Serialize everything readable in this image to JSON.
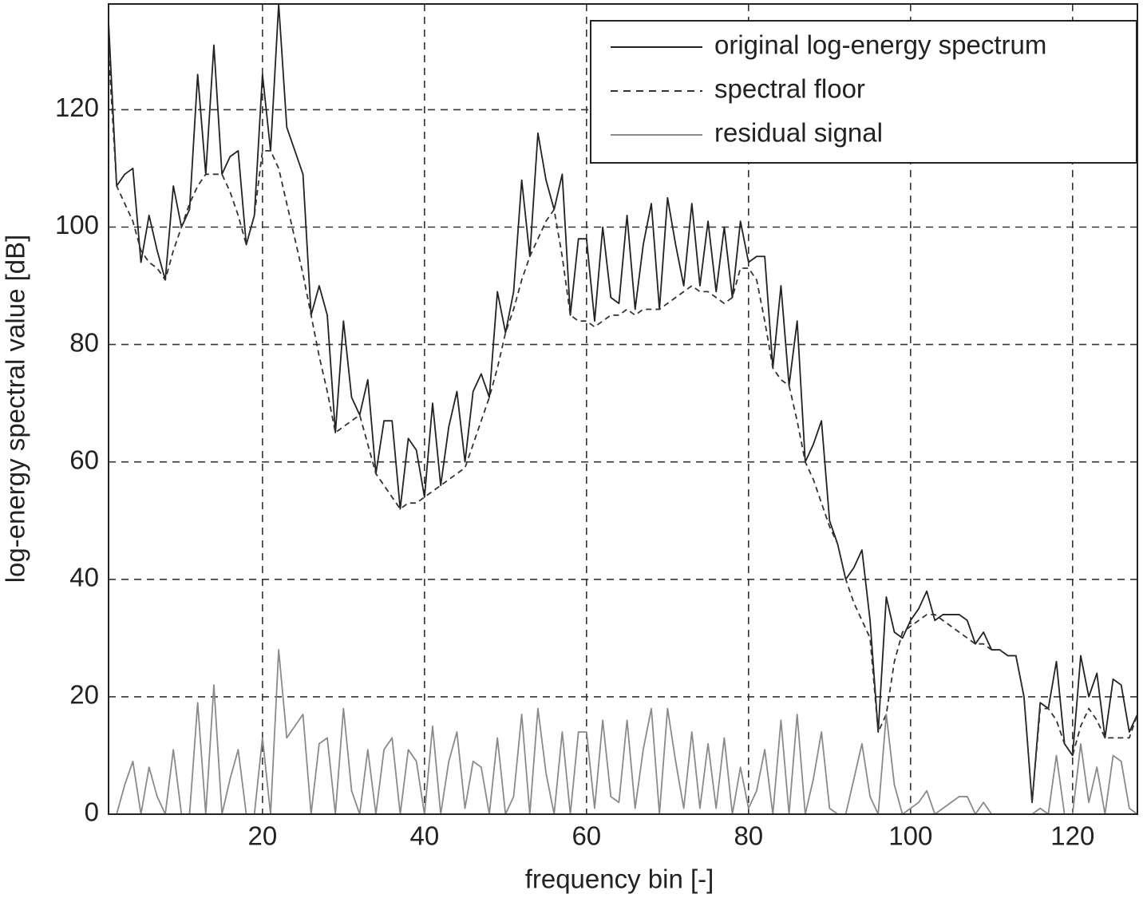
{
  "chart_data": {
    "type": "line",
    "xlabel": "frequency bin [-]",
    "ylabel": "log-energy spectral value [dB]",
    "x": [
      1,
      2,
      3,
      4,
      5,
      6,
      7,
      8,
      9,
      10,
      11,
      12,
      13,
      14,
      15,
      16,
      17,
      18,
      19,
      20,
      21,
      22,
      23,
      24,
      25,
      26,
      27,
      28,
      29,
      30,
      31,
      32,
      33,
      34,
      35,
      36,
      37,
      38,
      39,
      40,
      41,
      42,
      43,
      44,
      45,
      46,
      47,
      48,
      49,
      50,
      51,
      52,
      53,
      54,
      55,
      56,
      57,
      58,
      59,
      60,
      61,
      62,
      63,
      64,
      65,
      66,
      67,
      68,
      69,
      70,
      71,
      72,
      73,
      74,
      75,
      76,
      77,
      78,
      79,
      80,
      81,
      82,
      83,
      84,
      85,
      86,
      87,
      88,
      89,
      90,
      91,
      92,
      93,
      94,
      95,
      96,
      97,
      98,
      99,
      100,
      101,
      102,
      103,
      104,
      105,
      106,
      107,
      108,
      109,
      110,
      111,
      112,
      113,
      114,
      115,
      116,
      117,
      118,
      119,
      120,
      121,
      122,
      123,
      124,
      125,
      126,
      127,
      128
    ],
    "xlim": [
      1,
      128
    ],
    "xticks": [
      20,
      40,
      60,
      80,
      100,
      120
    ],
    "ylim": [
      0,
      138
    ],
    "yticks": [
      0,
      20,
      40,
      60,
      80,
      100,
      120
    ],
    "grid": true,
    "legend": "upper right",
    "series": [
      {
        "name": "original log-energy spectrum",
        "color": "#222222",
        "line_style": "solid",
        "values": [
          135,
          107,
          109,
          110,
          94,
          102,
          96,
          91,
          107,
          100,
          103,
          126,
          109,
          131,
          109,
          112,
          113,
          97,
          102,
          126,
          113,
          138,
          117,
          113,
          109,
          85,
          90,
          85,
          65,
          84,
          71,
          68,
          74,
          58,
          67,
          67,
          52,
          64,
          62,
          54,
          70,
          56,
          66,
          72,
          60,
          72,
          75,
          71,
          89,
          82,
          89,
          108,
          95,
          116,
          108,
          103,
          109,
          85,
          98,
          98,
          84,
          100,
          88,
          87,
          102,
          86,
          97,
          104,
          86,
          105,
          97,
          90,
          104,
          90,
          101,
          89,
          100,
          88,
          101,
          94,
          95,
          95,
          76,
          90,
          73,
          84,
          60,
          63,
          67,
          50,
          46,
          40,
          42,
          45,
          33,
          14,
          37,
          31,
          30,
          33,
          35,
          38,
          33,
          34,
          34,
          34,
          33,
          29,
          31,
          28,
          28,
          27,
          27,
          20,
          2,
          19,
          18,
          26,
          12,
          10,
          27,
          20,
          24,
          13,
          23,
          22,
          14,
          17
        ]
      },
      {
        "name": "spectral floor",
        "color": "#333333",
        "line_style": "dashed",
        "values": [
          130,
          107,
          104,
          101,
          96,
          94,
          93,
          91,
          96,
          100,
          104,
          107,
          109,
          109,
          109,
          106,
          102,
          97,
          102,
          113,
          113,
          110,
          104,
          98,
          92,
          85,
          78,
          72,
          65,
          66,
          67,
          68,
          63,
          58,
          56,
          54,
          52,
          53,
          53,
          54,
          55,
          56,
          57,
          58,
          59,
          63,
          67,
          71,
          76,
          82,
          86,
          91,
          95,
          98,
          101,
          103,
          95,
          85,
          84,
          84,
          83,
          84,
          85,
          85,
          86,
          85,
          86,
          86,
          86,
          87,
          88,
          89,
          90,
          89,
          89,
          88,
          87,
          88,
          93,
          93,
          91,
          84,
          76,
          74,
          73,
          67,
          60,
          57,
          53,
          49,
          46,
          40,
          36,
          33,
          30,
          14,
          17,
          26,
          31,
          32,
          33,
          34,
          34,
          33,
          32,
          31,
          30,
          29,
          29,
          28,
          28,
          27,
          27,
          20,
          2,
          18,
          18,
          16,
          12,
          10,
          15,
          18,
          16,
          13,
          13,
          13,
          13,
          17
        ]
      },
      {
        "name": "residual signal",
        "color": "#8a8a8a",
        "line_style": "solid",
        "values": [
          0,
          0,
          5,
          9,
          0,
          8,
          3,
          0,
          11,
          0,
          0,
          19,
          0,
          22,
          0,
          6,
          11,
          0,
          0,
          13,
          0,
          28,
          13,
          15,
          17,
          0,
          12,
          13,
          0,
          18,
          4,
          0,
          11,
          0,
          11,
          13,
          0,
          11,
          9,
          0,
          15,
          0,
          9,
          14,
          1,
          9,
          8,
          0,
          13,
          0,
          3,
          17,
          0,
          18,
          7,
          0,
          14,
          0,
          14,
          14,
          1,
          16,
          3,
          2,
          16,
          1,
          11,
          18,
          0,
          18,
          9,
          1,
          14,
          1,
          12,
          1,
          13,
          0,
          8,
          1,
          4,
          11,
          0,
          16,
          0,
          17,
          0,
          6,
          14,
          1,
          0,
          0,
          6,
          12,
          3,
          0,
          17,
          5,
          0,
          1,
          2,
          4,
          0,
          1,
          2,
          3,
          3,
          0,
          2,
          0,
          0,
          0,
          0,
          0,
          0,
          1,
          0,
          10,
          0,
          0,
          12,
          2,
          8,
          0,
          10,
          9,
          1,
          0
        ]
      }
    ]
  }
}
